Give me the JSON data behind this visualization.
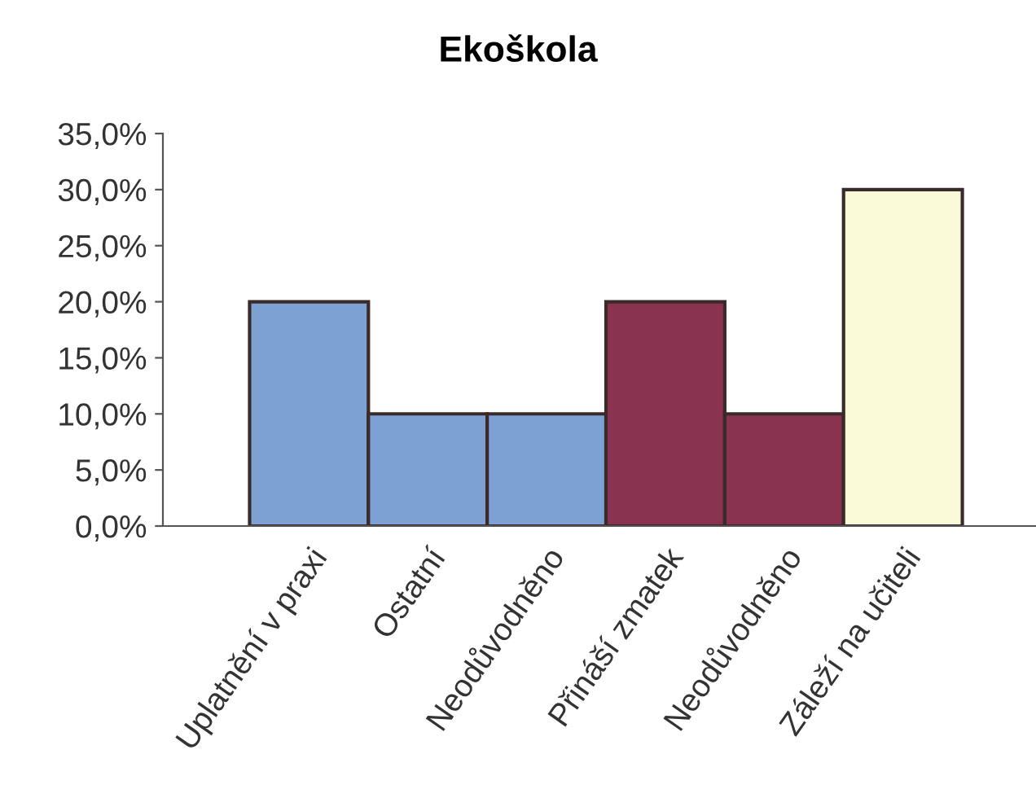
{
  "chart_data": {
    "type": "bar",
    "title": "Ekoškola",
    "categories": [
      "Uplatnění v praxi",
      "Ostatní",
      "Neodůvodněno",
      "Přináší zmatek",
      "Neodůvodněno",
      "Záleží na učiteli"
    ],
    "values": [
      20,
      10,
      10,
      20,
      10,
      30
    ],
    "colors": [
      "#7ea1d4",
      "#7ea1d4",
      "#7ea1d4",
      "#8a3350",
      "#8a3350",
      "#fafad8"
    ],
    "ylim": [
      0,
      35
    ],
    "yticks": [
      {
        "value": 0,
        "label": "0,0%"
      },
      {
        "value": 5,
        "label": "5,0%"
      },
      {
        "value": 10,
        "label": "10,0%"
      },
      {
        "value": 15,
        "label": "15,0%"
      },
      {
        "value": 20,
        "label": "20,0%"
      },
      {
        "value": 25,
        "label": "25,0%"
      },
      {
        "value": 30,
        "label": "30,0%"
      },
      {
        "value": 35,
        "label": "35,0%"
      }
    ],
    "grid": false
  }
}
